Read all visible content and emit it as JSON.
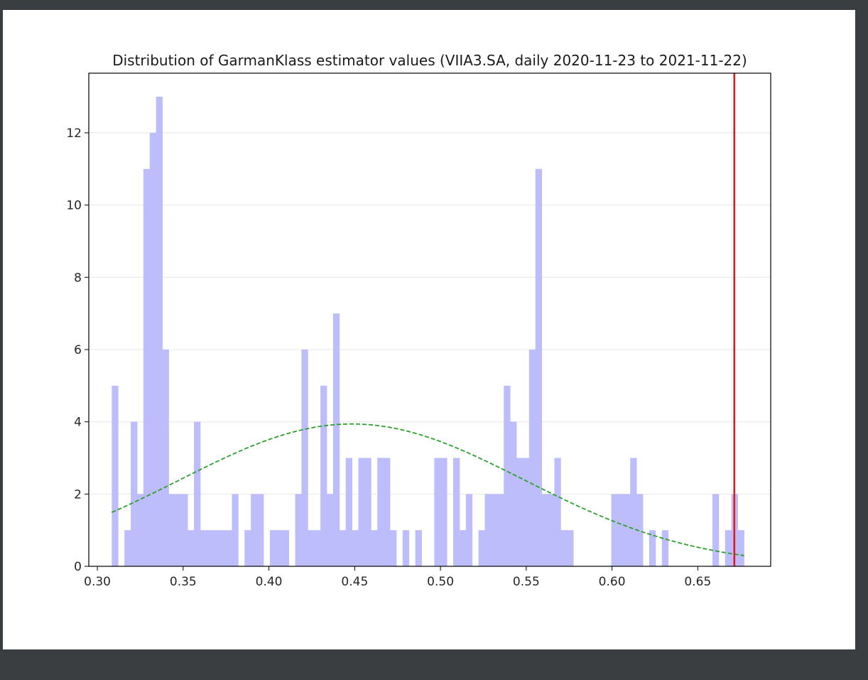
{
  "chart_data": {
    "type": "bar",
    "title": "Distribution of GarmanKlass estimator values (VIIA3.SA, daily 2020-11-23 to 2021-11-22)",
    "xlabel": "",
    "ylabel": "",
    "xlim": [
      0.295,
      0.6925
    ],
    "ylim": [
      0,
      13.65
    ],
    "xticks": [
      0.3,
      0.35,
      0.4,
      0.45,
      0.5,
      0.55,
      0.6,
      0.65
    ],
    "xtick_labels": [
      "0.30",
      "0.35",
      "0.40",
      "0.45",
      "0.50",
      "0.55",
      "0.60",
      "0.65"
    ],
    "yticks": [
      0,
      2,
      4,
      6,
      8,
      10,
      12
    ],
    "ytick_labels": [
      "0",
      "2",
      "4",
      "6",
      "8",
      "10",
      "12"
    ],
    "grid": "y",
    "histogram": {
      "bin_start": 0.3084,
      "bin_width": 0.0036857,
      "counts": [
        5,
        0,
        1,
        4,
        2,
        11,
        12,
        13,
        6,
        2,
        2,
        2,
        1,
        4,
        1,
        1,
        1,
        1,
        1,
        2,
        0,
        1,
        2,
        2,
        0,
        1,
        1,
        1,
        0,
        2,
        6,
        1,
        1,
        5,
        2,
        7,
        1,
        3,
        1,
        3,
        3,
        1,
        3,
        3,
        1,
        0,
        1,
        0,
        1,
        0,
        0,
        3,
        3,
        0,
        3,
        1,
        2,
        0,
        1,
        2,
        2,
        2,
        5,
        4,
        3,
        3,
        6,
        11,
        2,
        2,
        3,
        1,
        1,
        0,
        0,
        0,
        0,
        0,
        0,
        2,
        2,
        2,
        3,
        2,
        0,
        1,
        0,
        1,
        0,
        0,
        0,
        0,
        0,
        0,
        0,
        2,
        0,
        1,
        2,
        1
      ],
      "color": "#bdbdfb"
    },
    "normal_fit": {
      "mean": 0.4484,
      "std": 0.1005,
      "scale": 3.94,
      "x_range": [
        0.3084,
        0.677
      ],
      "color": "#2ca02c",
      "style": "dashed"
    },
    "vertical_line": {
      "x": 0.6713,
      "color": "#e31a1c"
    }
  }
}
